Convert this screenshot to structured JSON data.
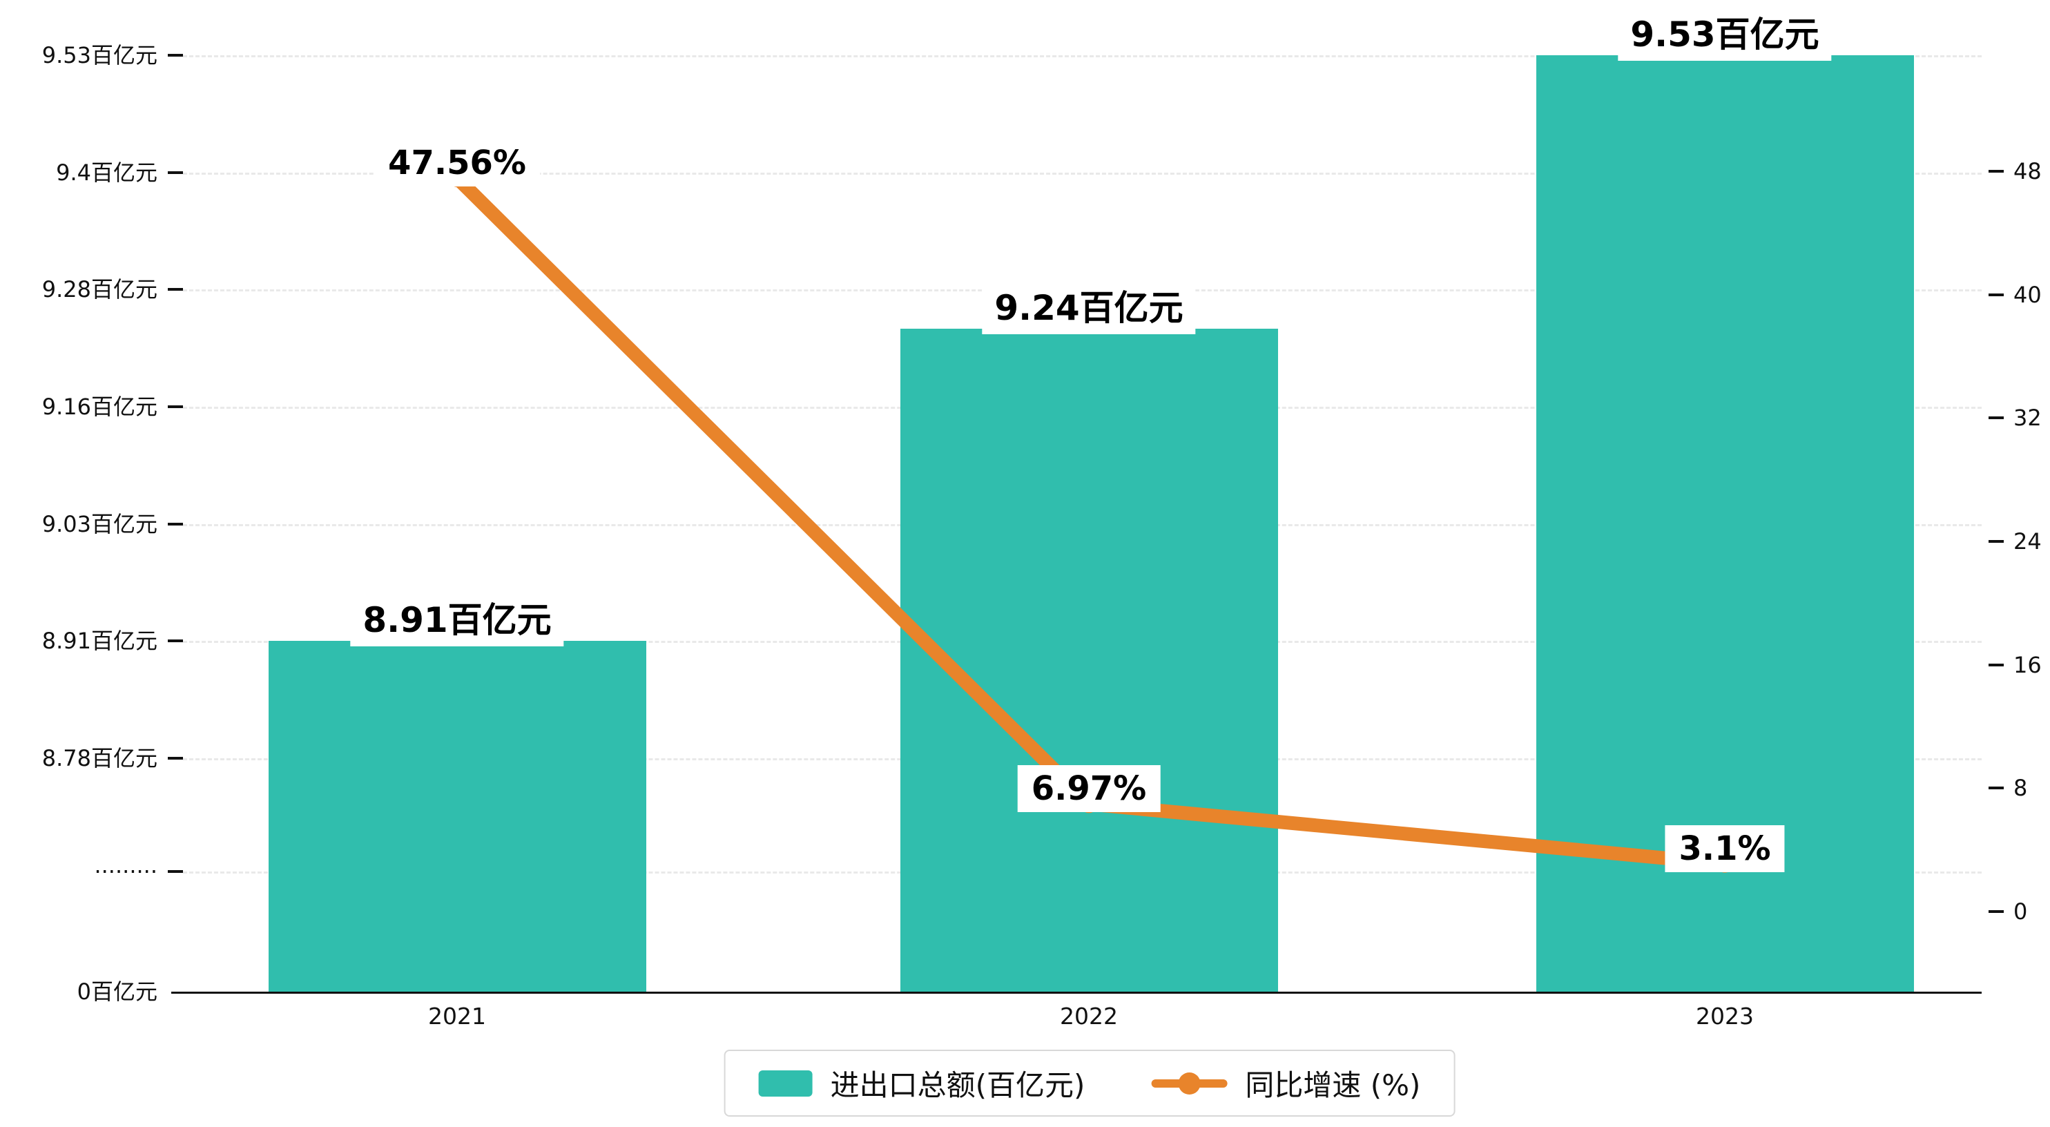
{
  "chart_data": {
    "type": "bar",
    "subtype": "bar-line-combo",
    "categories": [
      "2021",
      "2022",
      "2023"
    ],
    "series": [
      {
        "name": "进出口总额(百亿元)",
        "type": "bar",
        "axis": "left",
        "color": "#30bead",
        "values": [
          8.91,
          9.24,
          9.53
        ],
        "data_labels": [
          "8.91百亿元",
          "9.24百亿元",
          "9.53百亿元"
        ]
      },
      {
        "name": "同比增速 (%)",
        "type": "line",
        "axis": "right",
        "color": "#e8842b",
        "values": [
          47.56,
          6.97,
          3.1
        ],
        "data_labels": [
          "47.56%",
          "6.97%",
          "3.1%"
        ]
      }
    ],
    "left_axis": {
      "tick_labels": [
        "9.53百亿元",
        "9.4百亿元",
        "9.28百亿元",
        "9.16百亿元",
        "9.03百亿元",
        "8.91百亿元",
        "8.78百亿元"
      ],
      "tick_values": [
        9.53,
        9.4,
        9.28,
        9.16,
        9.03,
        8.91,
        8.78
      ],
      "has_break": true,
      "break_label": "·········",
      "zero_label": "0百亿元"
    },
    "right_axis": {
      "tick_labels": [
        "48",
        "40",
        "32",
        "24",
        "16",
        "8",
        "0"
      ],
      "max": 48,
      "min": 0
    },
    "x_axis": {
      "labels": [
        "2021",
        "2022",
        "2023"
      ]
    },
    "legend": {
      "position": "bottom",
      "items": [
        {
          "label": "进出口总额(百亿元)",
          "marker": "bar"
        },
        {
          "label": "同比增速 (%)",
          "marker": "line"
        }
      ]
    },
    "grid": {
      "dashed": true,
      "color": "#e9e9e9"
    }
  }
}
